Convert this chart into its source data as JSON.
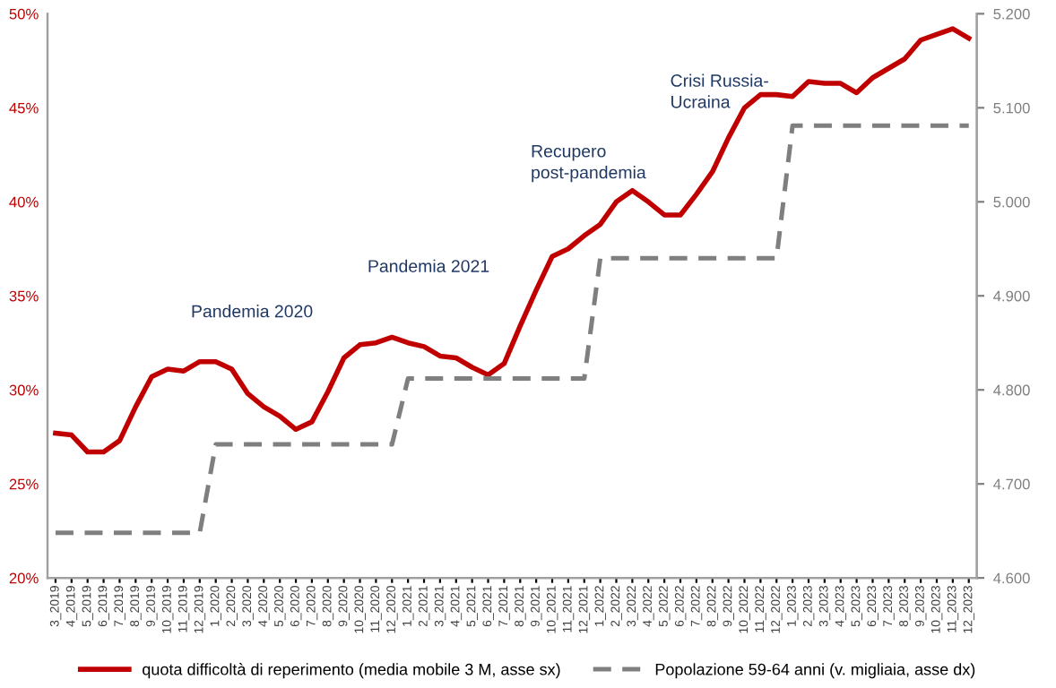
{
  "chart_data": {
    "type": "line",
    "categories": [
      "3_2019",
      "4_2019",
      "5_2019",
      "6_2019",
      "7_2019",
      "8_2019",
      "9_2019",
      "10_2019",
      "11_2019",
      "12_2019",
      "1_2020",
      "2_2020",
      "3_2020",
      "4_2020",
      "5_2020",
      "6_2020",
      "7_2020",
      "8_2020",
      "9_2020",
      "10_2020",
      "11_2020",
      "12_2020",
      "1_2021",
      "2_2021",
      "3_2021",
      "4_2021",
      "5_2021",
      "6_2021",
      "7_2021",
      "8_2021",
      "9_2021",
      "10_2021",
      "11_2021",
      "12_2021",
      "1_2022",
      "2_2022",
      "3_2022",
      "4_2022",
      "5_2022",
      "6_2022",
      "7_2022",
      "8_2022",
      "9_2022",
      "10_2022",
      "11_2022",
      "12_2022",
      "1_2023",
      "2_2023",
      "3_2023",
      "4_2023",
      "5_2023",
      "6_2023",
      "7_2023",
      "8_2023",
      "9_2023",
      "10_2023",
      "11_2023",
      "12_2023"
    ],
    "series": [
      {
        "name": "quota difficoltà di reperimento (media mobile 3 M, asse sx)",
        "color": "#c00000",
        "line_style": "solid",
        "values": [
          27.7,
          27.6,
          26.7,
          26.7,
          27.3,
          29.1,
          30.7,
          31.1,
          31.0,
          31.5,
          31.5,
          31.1,
          29.8,
          29.1,
          28.6,
          27.9,
          28.3,
          29.9,
          31.7,
          32.4,
          32.5,
          32.8,
          32.5,
          32.3,
          31.8,
          31.7,
          31.2,
          30.8,
          31.4,
          33.4,
          35.3,
          37.1,
          37.5,
          38.2,
          38.8,
          40.0,
          40.6,
          40.0,
          39.3,
          39.3,
          40.4,
          41.6,
          43.4,
          45.0,
          45.7,
          45.7,
          45.6,
          46.4,
          46.3,
          46.3,
          45.8,
          46.6,
          47.1,
          47.6,
          48.6,
          48.9,
          49.2,
          48.7
        ]
      },
      {
        "name": "Popolazione 59-64 anni (v. migliaia, asse dx)",
        "color": "#7f7f7f",
        "line_style": "dashed",
        "axis": "y2",
        "values": [
          4648,
          4648,
          4648,
          4648,
          4648,
          4648,
          4648,
          4648,
          4648,
          4648,
          4742,
          4742,
          4742,
          4742,
          4742,
          4742,
          4742,
          4742,
          4742,
          4742,
          4742,
          4742,
          4812,
          4812,
          4812,
          4812,
          4812,
          4812,
          4812,
          4812,
          4812,
          4812,
          4812,
          4812,
          4940,
          4940,
          4940,
          4940,
          4940,
          4940,
          4940,
          4940,
          4940,
          4940,
          4940,
          4940,
          5081,
          5081,
          5081,
          5081,
          5081,
          5081,
          5081,
          5081,
          5081,
          5081,
          5081,
          5081
        ]
      }
    ],
    "ylim": [
      20,
      50
    ],
    "yticks": [
      {
        "value": 20,
        "label": "20%"
      },
      {
        "value": 25,
        "label": "25%"
      },
      {
        "value": 30,
        "label": "30%"
      },
      {
        "value": 35,
        "label": "35%"
      },
      {
        "value": 40,
        "label": "40%"
      },
      {
        "value": 45,
        "label": "45%"
      },
      {
        "value": 50,
        "label": "50%"
      }
    ],
    "y2lim": [
      4600,
      5200
    ],
    "y2ticks": [
      {
        "value": 4600,
        "label": "4.600"
      },
      {
        "value": 4700,
        "label": "4.700"
      },
      {
        "value": 4800,
        "label": "4.800"
      },
      {
        "value": 4900,
        "label": "4.900"
      },
      {
        "value": 5000,
        "label": "5.000"
      },
      {
        "value": 5100,
        "label": "5.100"
      },
      {
        "value": 5200,
        "label": "5.200"
      }
    ],
    "annotations": [
      "Pandemia 2020",
      "Pandemia 2021",
      "Recupero\npost-pandemia",
      "Crisi Russia-\nUcraina"
    ],
    "grid": false,
    "legend": "bottom",
    "marker": "none"
  }
}
